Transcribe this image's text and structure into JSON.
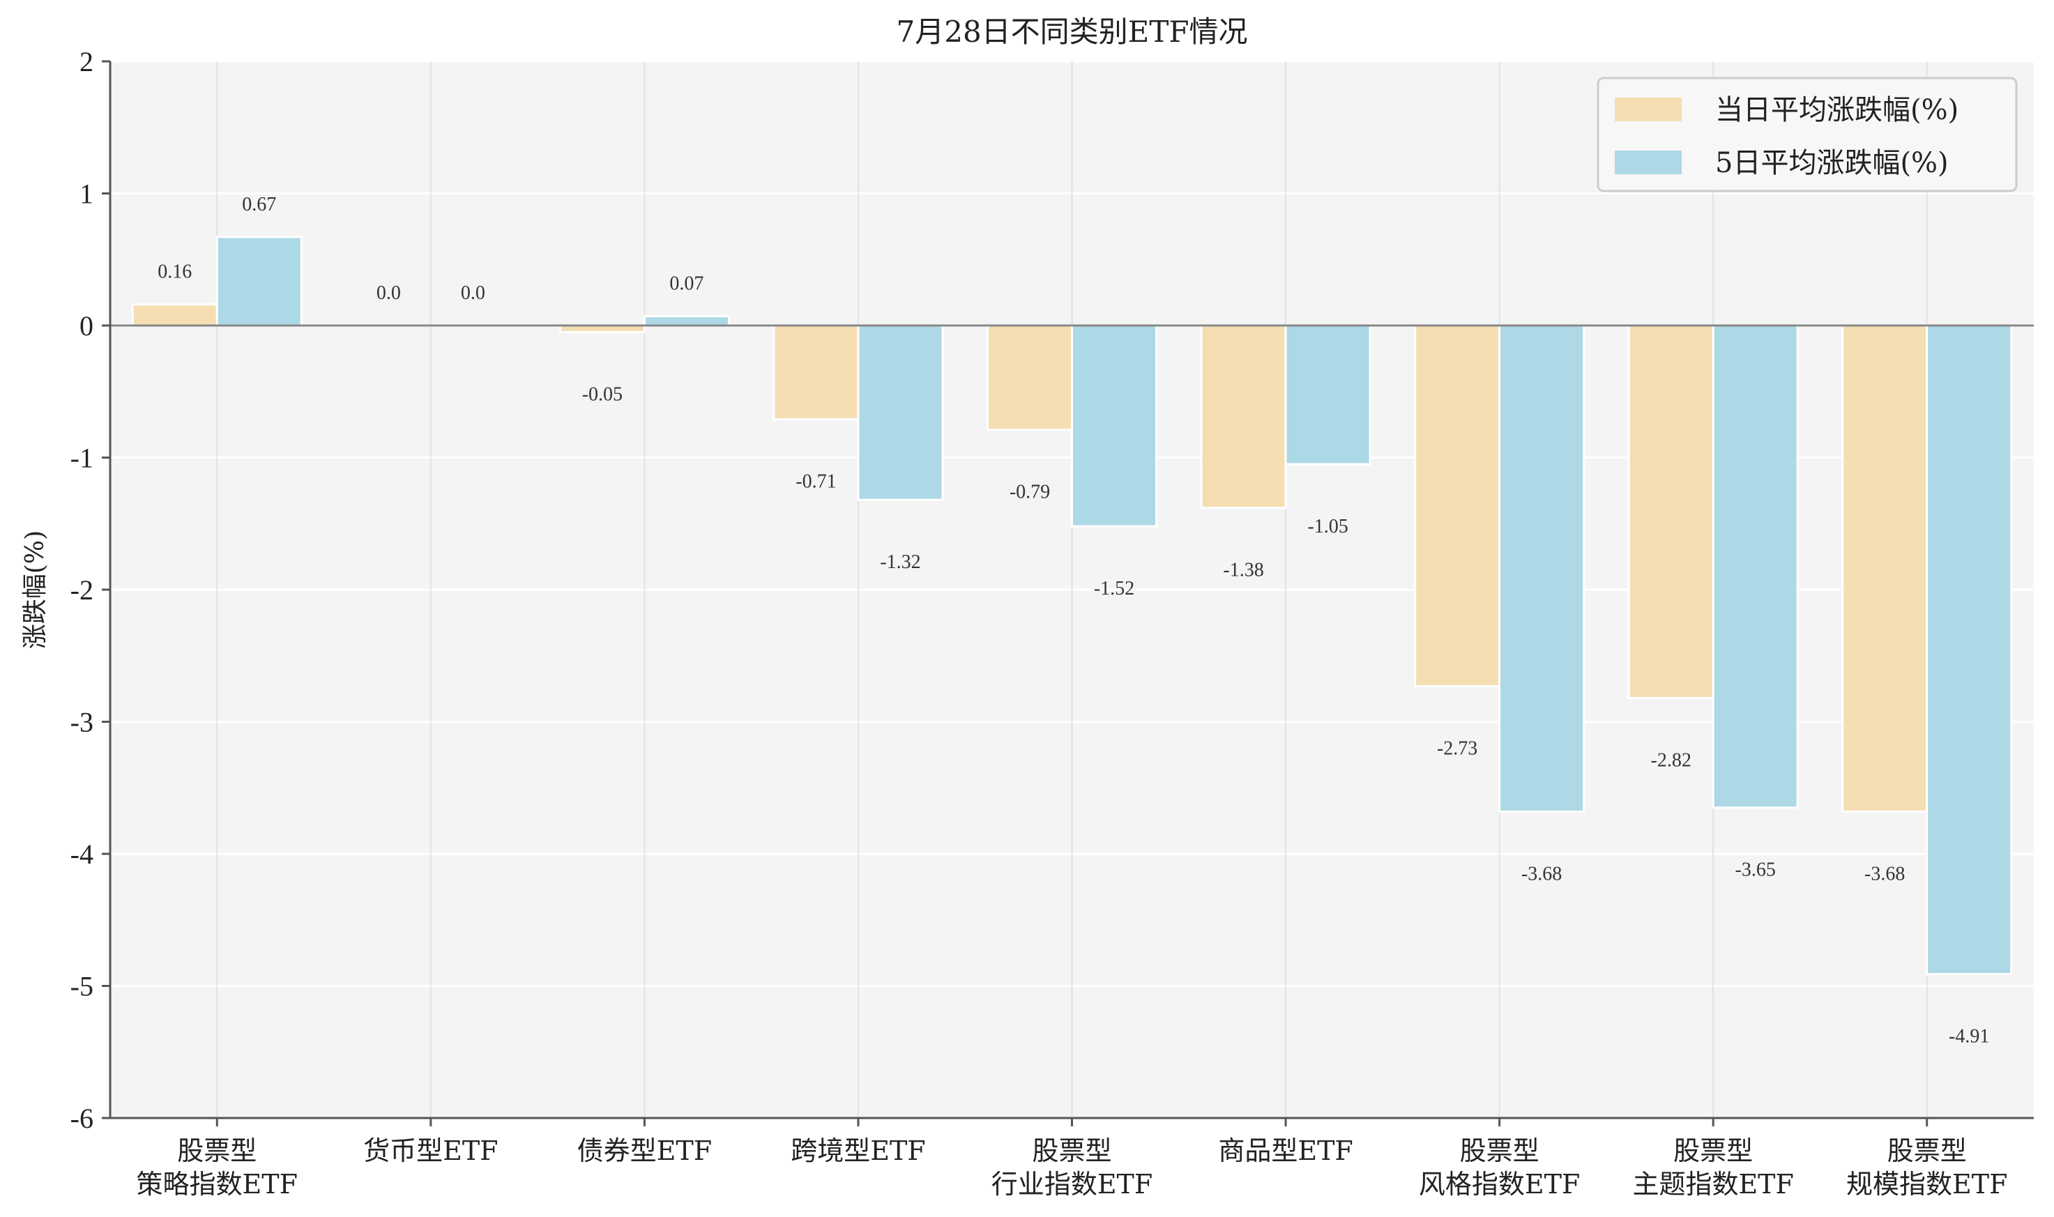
{
  "chart_data": {
    "type": "bar",
    "title": "7月28日不同类别ETF情况",
    "xlabel": "",
    "ylabel": "涨跌幅(%)",
    "ylim": [
      -6,
      2
    ],
    "yticks": [
      2,
      1,
      0,
      -1,
      -2,
      -3,
      -4,
      -5,
      -6
    ],
    "grid": true,
    "legend": "top-right",
    "categories": [
      [
        "股票型",
        "策略指数ETF"
      ],
      [
        "货币型ETF"
      ],
      [
        "债券型ETF"
      ],
      [
        "跨境型ETF"
      ],
      [
        "股票型",
        "行业指数ETF"
      ],
      [
        "商品型ETF"
      ],
      [
        "股票型",
        "风格指数ETF"
      ],
      [
        "股票型",
        "主题指数ETF"
      ],
      [
        "股票型",
        "规模指数ETF"
      ]
    ],
    "series": [
      {
        "name": "当日平均涨跌幅(%)",
        "color": "#f5deb3",
        "values": [
          0.16,
          0.0,
          -0.05,
          -0.71,
          -0.79,
          -1.38,
          -2.73,
          -2.82,
          -3.68
        ],
        "labels": [
          "0.16",
          "0.0",
          "-0.05",
          "-0.71",
          "-0.79",
          "-1.38",
          "-2.73",
          "-2.82",
          "-3.68"
        ]
      },
      {
        "name": "5日平均涨跌幅(%)",
        "color": "#add8e6",
        "values": [
          0.67,
          0.0,
          0.07,
          -1.32,
          -1.52,
          -1.05,
          -3.68,
          -3.65,
          -4.91
        ],
        "labels": [
          "0.67",
          "0.0",
          "0.07",
          "-1.32",
          "-1.52",
          "-1.05",
          "-3.68",
          "-3.65",
          "-4.91"
        ]
      }
    ]
  }
}
